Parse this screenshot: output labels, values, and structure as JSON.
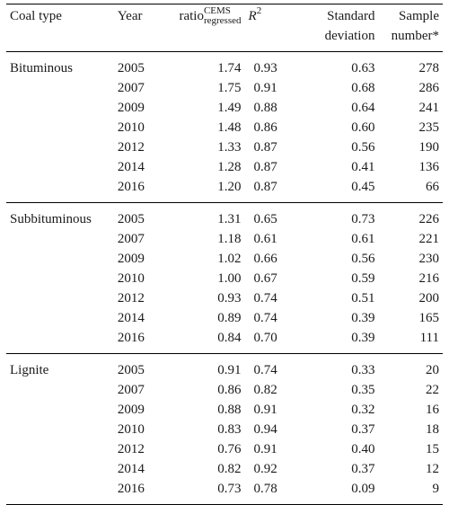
{
  "headers": {
    "coal_type": "Coal type",
    "year": "Year",
    "ratio_base": "ratio",
    "ratio_sup": "CEMS",
    "ratio_sub": "regressed",
    "r2_base": "R",
    "r2_sup": "2",
    "sd_line1": "Standard",
    "sd_line2": "deviation",
    "n_line1": "Sample",
    "n_line2": "number*"
  },
  "groups": [
    {
      "coal_type": "Bituminous",
      "rows": [
        {
          "year": "2005",
          "ratio": "1.74",
          "r2": "0.93",
          "sd": "0.63",
          "n": "278"
        },
        {
          "year": "2007",
          "ratio": "1.75",
          "r2": "0.91",
          "sd": "0.68",
          "n": "286"
        },
        {
          "year": "2009",
          "ratio": "1.49",
          "r2": "0.88",
          "sd": "0.64",
          "n": "241"
        },
        {
          "year": "2010",
          "ratio": "1.48",
          "r2": "0.86",
          "sd": "0.60",
          "n": "235"
        },
        {
          "year": "2012",
          "ratio": "1.33",
          "r2": "0.87",
          "sd": "0.56",
          "n": "190"
        },
        {
          "year": "2014",
          "ratio": "1.28",
          "r2": "0.87",
          "sd": "0.41",
          "n": "136"
        },
        {
          "year": "2016",
          "ratio": "1.20",
          "r2": "0.87",
          "sd": "0.45",
          "n": "66"
        }
      ]
    },
    {
      "coal_type": "Subbituminous",
      "rows": [
        {
          "year": "2005",
          "ratio": "1.31",
          "r2": "0.65",
          "sd": "0.73",
          "n": "226"
        },
        {
          "year": "2007",
          "ratio": "1.18",
          "r2": "0.61",
          "sd": "0.61",
          "n": "221"
        },
        {
          "year": "2009",
          "ratio": "1.02",
          "r2": "0.66",
          "sd": "0.56",
          "n": "230"
        },
        {
          "year": "2010",
          "ratio": "1.00",
          "r2": "0.67",
          "sd": "0.59",
          "n": "216"
        },
        {
          "year": "2012",
          "ratio": "0.93",
          "r2": "0.74",
          "sd": "0.51",
          "n": "200"
        },
        {
          "year": "2014",
          "ratio": "0.89",
          "r2": "0.74",
          "sd": "0.39",
          "n": "165"
        },
        {
          "year": "2016",
          "ratio": "0.84",
          "r2": "0.70",
          "sd": "0.39",
          "n": "111"
        }
      ]
    },
    {
      "coal_type": "Lignite",
      "rows": [
        {
          "year": "2005",
          "ratio": "0.91",
          "r2": "0.74",
          "sd": "0.33",
          "n": "20"
        },
        {
          "year": "2007",
          "ratio": "0.86",
          "r2": "0.82",
          "sd": "0.35",
          "n": "22"
        },
        {
          "year": "2009",
          "ratio": "0.88",
          "r2": "0.91",
          "sd": "0.32",
          "n": "16"
        },
        {
          "year": "2010",
          "ratio": "0.83",
          "r2": "0.94",
          "sd": "0.37",
          "n": "18"
        },
        {
          "year": "2012",
          "ratio": "0.76",
          "r2": "0.91",
          "sd": "0.40",
          "n": "15"
        },
        {
          "year": "2014",
          "ratio": "0.82",
          "r2": "0.92",
          "sd": "0.37",
          "n": "12"
        },
        {
          "year": "2016",
          "ratio": "0.73",
          "r2": "0.78",
          "sd": "0.09",
          "n": "9"
        }
      ]
    }
  ]
}
